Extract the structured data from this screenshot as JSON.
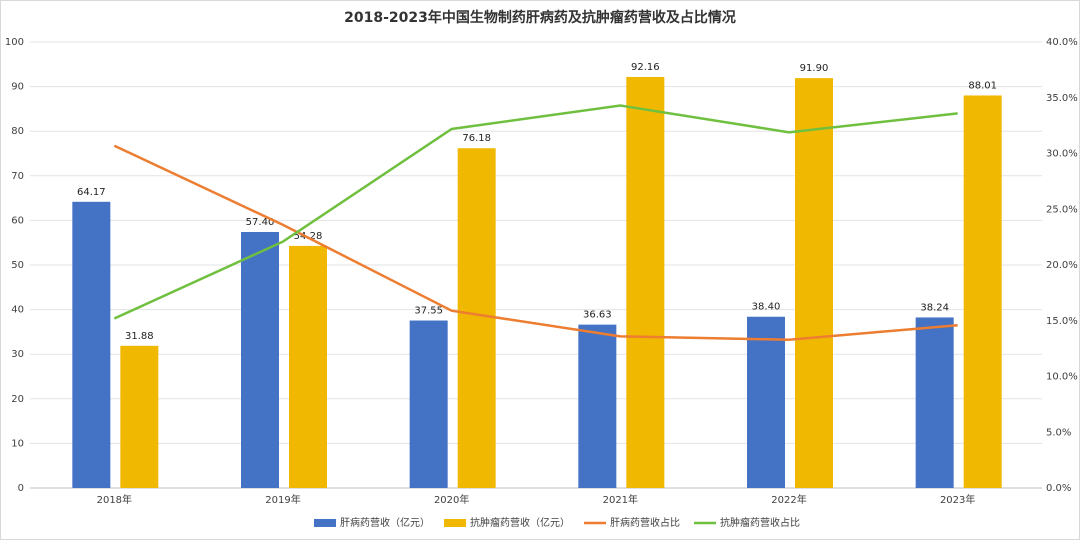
{
  "chart_data": {
    "type": "bar-line",
    "title": "2018-2023年中国生物制药肝病药及抗肿瘤药营收及占比情况",
    "categories": [
      "2018年",
      "2019年",
      "2020年",
      "2021年",
      "2022年",
      "2023年"
    ],
    "series": [
      {
        "name": "肝病药营收（亿元）",
        "type": "bar",
        "color": "#4472c4",
        "values": [
          64.17,
          57.4,
          37.55,
          36.63,
          38.4,
          38.24
        ],
        "value_labels": [
          "64.17",
          "57.40",
          "37.55",
          "36.63",
          "38.40",
          "38.24"
        ]
      },
      {
        "name": "抗肿瘤药营收（亿元）",
        "type": "bar",
        "color": "#f0b800",
        "values": [
          31.88,
          54.28,
          76.18,
          92.16,
          91.9,
          88.01
        ],
        "value_labels": [
          "31.88",
          "54.28",
          "76.18",
          "92.16",
          "91.90",
          "88.01"
        ]
      },
      {
        "name": "肝病药营收占比",
        "type": "line",
        "axis": "y2",
        "color": "#ed7d31",
        "values": [
          30.7,
          23.6,
          15.9,
          13.6,
          13.3,
          14.6
        ]
      },
      {
        "name": "抗肿瘤药营收占比",
        "type": "line",
        "axis": "y2",
        "color": "#70c040",
        "values": [
          15.2,
          22.1,
          32.2,
          34.3,
          31.9,
          33.6
        ]
      }
    ],
    "ylim": [
      0,
      100
    ],
    "yticks": [
      0,
      10,
      20,
      30,
      40,
      50,
      60,
      70,
      80,
      90,
      100
    ],
    "y2lim": [
      0,
      40
    ],
    "y2ticks": [
      {
        "value": 0,
        "label": "0.0%"
      },
      {
        "value": 5,
        "label": "5.0%"
      },
      {
        "value": 10,
        "label": "10.0%"
      },
      {
        "value": 15,
        "label": "15.0%"
      },
      {
        "value": 20,
        "label": "20.0%"
      },
      {
        "value": 25,
        "label": "25.0%"
      },
      {
        "value": 30,
        "label": "30.0%"
      },
      {
        "value": 35,
        "label": "35.0%"
      },
      {
        "value": 40,
        "label": "40.0%"
      }
    ],
    "grid": true,
    "legend": "bottom"
  }
}
